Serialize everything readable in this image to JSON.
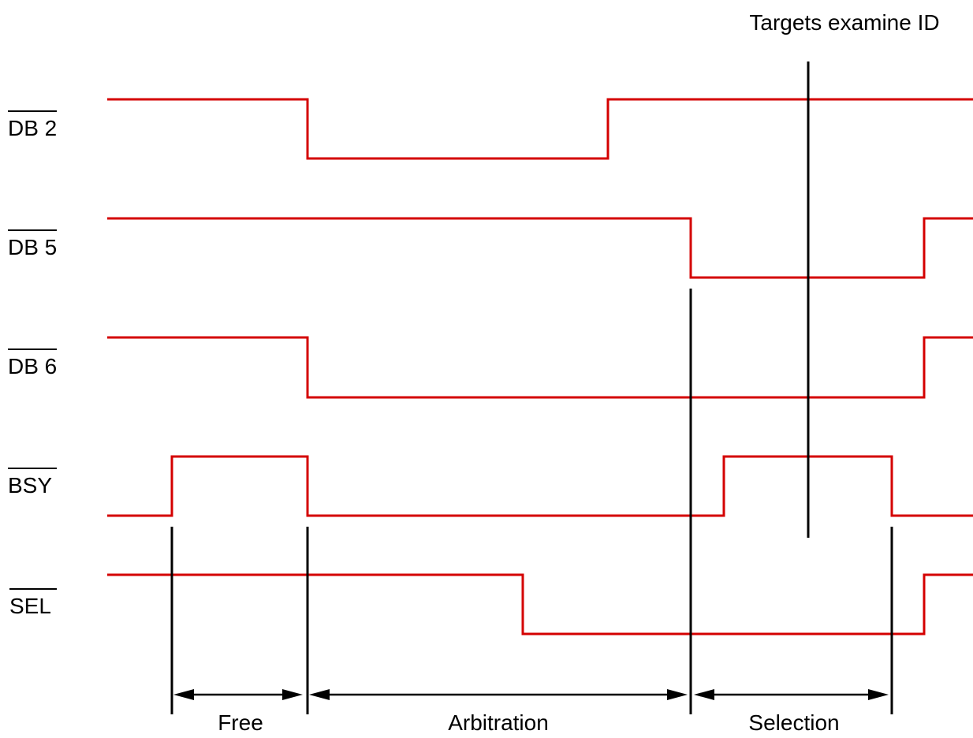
{
  "colors": {
    "signal": "#d40000",
    "marker": "#000000",
    "background": "#ffffff"
  },
  "signals": [
    {
      "name": "DB2",
      "label": "DB 2",
      "active_low": true
    },
    {
      "name": "DB5",
      "label": "DB 5",
      "active_low": true
    },
    {
      "name": "DB6",
      "label": "DB 6",
      "active_low": true
    },
    {
      "name": "BSY",
      "label": "BSY",
      "active_low": true
    },
    {
      "name": "SEL",
      "label": "SEL",
      "active_low": true
    }
  ],
  "phases": [
    {
      "name": "free",
      "label": "Free"
    },
    {
      "name": "arbitration",
      "label": "Arbitration"
    },
    {
      "name": "selection",
      "label": "Selection"
    }
  ],
  "annotation": {
    "label": "Targets examine ID"
  }
}
